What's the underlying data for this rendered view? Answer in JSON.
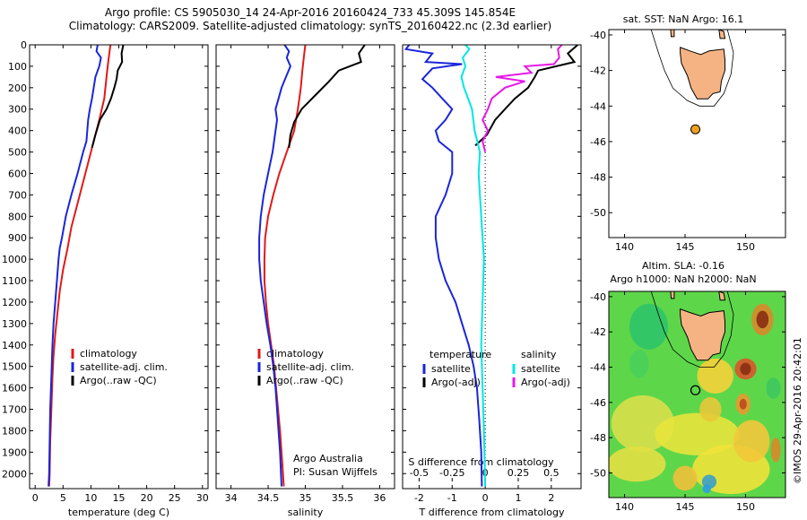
{
  "title_line1": "Argo profile: CS 5905030_14 24-Apr-2016 20160424_733 45.309S 145.854E",
  "title_line2": "Climatology: CARS2009. Satellite-adjusted climatology: synTS_20160422.nc (2.3d earlier)",
  "credit_vertical": "©IMOS 29-Apr-2016 20:42:01",
  "colors": {
    "red": "#e11919",
    "blue": "#1a26d9",
    "black": "#000000",
    "cyan": "#00e6e6",
    "magenta": "#e619e6",
    "land": "#f5b383",
    "float": "#f0a020"
  },
  "chart_data": [
    {
      "type": "line",
      "panel": "temperature",
      "xlabel": "temperature (deg C)",
      "ylabel": "",
      "xlim": [
        -1,
        31
      ],
      "ylim": [
        2070,
        0
      ],
      "xticks": [
        0,
        5,
        10,
        15,
        20,
        25,
        30
      ],
      "yticks": [
        0,
        100,
        200,
        300,
        400,
        500,
        600,
        700,
        800,
        900,
        1000,
        1100,
        1200,
        1300,
        1400,
        1500,
        1600,
        1700,
        1800,
        1900,
        2000
      ],
      "series": [
        {
          "name": "climatology",
          "color": "red",
          "points": [
            [
              13.5,
              0
            ],
            [
              13.3,
              40
            ],
            [
              13.0,
              100
            ],
            [
              12.8,
              150
            ],
            [
              12.4,
              250
            ],
            [
              11.5,
              350
            ],
            [
              10.5,
              450
            ],
            [
              9.5,
              550
            ],
            [
              8.5,
              650
            ],
            [
              7.5,
              750
            ],
            [
              6.5,
              850
            ],
            [
              5.8,
              950
            ],
            [
              5.0,
              1050
            ],
            [
              4.4,
              1150
            ],
            [
              4.0,
              1250
            ],
            [
              3.6,
              1350
            ],
            [
              3.3,
              1450
            ],
            [
              3.1,
              1550
            ],
            [
              2.9,
              1700
            ],
            [
              2.7,
              1850
            ],
            [
              2.6,
              2000
            ],
            [
              2.5,
              2060
            ]
          ]
        },
        {
          "name": "satellite-adj. clim.",
          "color": "blue",
          "points": [
            [
              11.2,
              0
            ],
            [
              11.0,
              30
            ],
            [
              11.8,
              60
            ],
            [
              11.5,
              100
            ],
            [
              10.8,
              150
            ],
            [
              10.5,
              200
            ],
            [
              10.2,
              250
            ],
            [
              9.8,
              300
            ],
            [
              9.5,
              350
            ],
            [
              9.2,
              450
            ],
            [
              8.6,
              500
            ],
            [
              7.6,
              600
            ],
            [
              6.5,
              700
            ],
            [
              5.5,
              800
            ],
            [
              4.8,
              900
            ],
            [
              4.4,
              950
            ],
            [
              4.2,
              1000
            ],
            [
              3.9,
              1100
            ],
            [
              3.6,
              1200
            ],
            [
              3.3,
              1300
            ],
            [
              3.1,
              1400
            ],
            [
              2.9,
              1550
            ],
            [
              2.7,
              1700
            ],
            [
              2.6,
              1850
            ],
            [
              2.5,
              2000
            ],
            [
              2.4,
              2060
            ]
          ]
        },
        {
          "name": "Argo(..raw -QC)",
          "color": "black",
          "points": [
            [
              15.8,
              0
            ],
            [
              15.5,
              40
            ],
            [
              15.6,
              80
            ],
            [
              14.8,
              120
            ],
            [
              14.6,
              160
            ],
            [
              14.2,
              200
            ],
            [
              13.6,
              250
            ],
            [
              12.8,
              300
            ],
            [
              11.6,
              350
            ],
            [
              10.8,
              420
            ],
            [
              10.2,
              480
            ]
          ]
        }
      ],
      "legend": [
        "climatology",
        "satellite-adj. clim.",
        "Argo(..raw -QC)"
      ]
    },
    {
      "type": "line",
      "panel": "salinity",
      "xlabel": "salinity",
      "xlim": [
        33.8,
        36.2
      ],
      "ylim": [
        2070,
        0
      ],
      "xticks": [
        34,
        34.5,
        35,
        35.5,
        36
      ],
      "xticklabels": [
        "34",
        "34.5",
        "35",
        "35.5",
        "36"
      ],
      "series": [
        {
          "name": "climatology",
          "color": "red",
          "points": [
            [
              35.0,
              0
            ],
            [
              34.98,
              60
            ],
            [
              34.96,
              120
            ],
            [
              34.94,
              200
            ],
            [
              34.9,
              300
            ],
            [
              34.85,
              400
            ],
            [
              34.75,
              500
            ],
            [
              34.65,
              600
            ],
            [
              34.57,
              700
            ],
            [
              34.5,
              800
            ],
            [
              34.46,
              900
            ],
            [
              34.45,
              1000
            ],
            [
              34.45,
              1100
            ],
            [
              34.47,
              1200
            ],
            [
              34.5,
              1300
            ],
            [
              34.54,
              1400
            ],
            [
              34.58,
              1500
            ],
            [
              34.62,
              1650
            ],
            [
              34.66,
              1800
            ],
            [
              34.69,
              1950
            ],
            [
              34.71,
              2060
            ]
          ]
        },
        {
          "name": "satellite-adj. clim.",
          "color": "blue",
          "points": [
            [
              34.72,
              0
            ],
            [
              34.78,
              30
            ],
            [
              34.75,
              60
            ],
            [
              34.8,
              100
            ],
            [
              34.74,
              150
            ],
            [
              34.68,
              200
            ],
            [
              34.64,
              250
            ],
            [
              34.6,
              300
            ],
            [
              34.62,
              350
            ],
            [
              34.6,
              400
            ],
            [
              34.56,
              500
            ],
            [
              34.5,
              600
            ],
            [
              34.44,
              700
            ],
            [
              34.4,
              800
            ],
            [
              34.38,
              900
            ],
            [
              34.38,
              1000
            ],
            [
              34.4,
              1100
            ],
            [
              34.44,
              1200
            ],
            [
              34.48,
              1300
            ],
            [
              34.53,
              1400
            ],
            [
              34.57,
              1500
            ],
            [
              34.6,
              1600
            ],
            [
              34.63,
              1750
            ],
            [
              34.66,
              1900
            ],
            [
              34.68,
              2060
            ]
          ]
        },
        {
          "name": "Argo(..raw -QC)",
          "color": "black",
          "points": [
            [
              35.8,
              0
            ],
            [
              35.72,
              40
            ],
            [
              35.75,
              80
            ],
            [
              35.45,
              120
            ],
            [
              35.32,
              170
            ],
            [
              35.15,
              230
            ],
            [
              34.95,
              300
            ],
            [
              34.85,
              360
            ],
            [
              34.8,
              420
            ],
            [
              34.78,
              480
            ]
          ]
        }
      ],
      "legend": [
        "climatology",
        "satellite-adj. clim.",
        "Argo(..raw -QC)"
      ],
      "annotation": [
        "Argo Australia",
        "PI: Susan Wijffels"
      ]
    },
    {
      "type": "line",
      "panel": "difference",
      "xlabel": "T difference from climatology",
      "top_axis_label": "S difference from climatology",
      "xlim": [
        -2.5,
        2.9
      ],
      "ylim": [
        2070,
        0
      ],
      "xticks": [
        -2,
        -1,
        0,
        1,
        2
      ],
      "top_ticks": [
        -0.5,
        -0.25,
        0,
        0.25,
        0.5
      ],
      "series": [
        {
          "name": "temperature satellite",
          "axis": "T",
          "color": "blue",
          "points": [
            [
              -2.3,
              0
            ],
            [
              -2.4,
              20
            ],
            [
              -1.6,
              40
            ],
            [
              -1.8,
              80
            ],
            [
              -0.7,
              90
            ],
            [
              -1.6,
              110
            ],
            [
              -1.9,
              160
            ],
            [
              -1.6,
              200
            ],
            [
              -1.3,
              250
            ],
            [
              -1.0,
              300
            ],
            [
              -1.2,
              350
            ],
            [
              -1.5,
              400
            ],
            [
              -1.4,
              450
            ],
            [
              -1.0,
              500
            ],
            [
              -1.0,
              600
            ],
            [
              -1.2,
              700
            ],
            [
              -1.5,
              800
            ],
            [
              -1.5,
              900
            ],
            [
              -1.4,
              1000
            ],
            [
              -1.2,
              1100
            ],
            [
              -0.9,
              1200
            ],
            [
              -0.7,
              1300
            ],
            [
              -0.5,
              1400
            ],
            [
              -0.35,
              1500
            ],
            [
              -0.25,
              1600
            ],
            [
              -0.18,
              1750
            ],
            [
              -0.12,
              1900
            ],
            [
              -0.1,
              2060
            ]
          ]
        },
        {
          "name": "temperature Argo(-adj)",
          "axis": "T",
          "color": "black",
          "points": [
            [
              2.8,
              0
            ],
            [
              2.5,
              40
            ],
            [
              2.7,
              80
            ],
            [
              1.6,
              120
            ],
            [
              1.5,
              150
            ],
            [
              1.3,
              200
            ],
            [
              0.9,
              250
            ],
            [
              0.6,
              300
            ],
            [
              0.3,
              350
            ],
            [
              0.05,
              420
            ],
            [
              -0.3,
              470
            ]
          ]
        },
        {
          "name": "salinity satellite",
          "axis": "S",
          "color": "cyan",
          "points": [
            [
              -0.15,
              0
            ],
            [
              -0.12,
              20
            ],
            [
              -0.17,
              60
            ],
            [
              -0.15,
              100
            ],
            [
              -0.18,
              150
            ],
            [
              -0.16,
              200
            ],
            [
              -0.13,
              250
            ],
            [
              -0.1,
              300
            ],
            [
              -0.08,
              400
            ],
            [
              -0.06,
              450
            ],
            [
              -0.04,
              500
            ],
            [
              -0.05,
              600
            ],
            [
              -0.04,
              700
            ],
            [
              -0.03,
              800
            ],
            [
              -0.02,
              900
            ],
            [
              -0.01,
              1000
            ],
            [
              -0.02,
              1200
            ],
            [
              -0.03,
              1400
            ],
            [
              -0.02,
              1600
            ],
            [
              -0.01,
              1800
            ],
            [
              0.0,
              2060
            ]
          ]
        },
        {
          "name": "salinity Argo(-adj)",
          "axis": "S",
          "color": "magenta",
          "points": [
            [
              0.58,
              0
            ],
            [
              0.55,
              20
            ],
            [
              0.56,
              60
            ],
            [
              0.52,
              90
            ],
            [
              0.3,
              100
            ],
            [
              0.35,
              130
            ],
            [
              0.08,
              150
            ],
            [
              0.3,
              170
            ],
            [
              0.15,
              200
            ],
            [
              0.05,
              250
            ],
            [
              0.02,
              300
            ],
            [
              -0.02,
              350
            ],
            [
              0.02,
              400
            ],
            [
              -0.02,
              450
            ],
            [
              0.0,
              500
            ]
          ]
        }
      ],
      "legend_titles": {
        "temperature": "temperature",
        "salinity": "salinity"
      },
      "legend": [
        "satellite",
        "Argo(-adj)",
        "satellite",
        "Argo(-adj)"
      ]
    }
  ],
  "ytick_labels": [
    "0",
    "100",
    "200",
    "300",
    "400",
    "500",
    "600",
    "700",
    "800",
    "900",
    "1000",
    "1100",
    "1200",
    "1300",
    "1400",
    "1500",
    "1600",
    "1700",
    "1800",
    "1900",
    "2000"
  ],
  "map_sst": {
    "title": "sat. SST: NaN Argo: 16.1",
    "lon_range": [
      138.7,
      153.3
    ],
    "lat_range": [
      -51.4,
      -39.7
    ],
    "xticks": [
      140,
      145,
      150
    ],
    "yticks": [
      -40,
      -42,
      -44,
      -46,
      -48,
      -50
    ],
    "float_position": {
      "lon": 145.854,
      "lat": -45.309
    }
  },
  "map_sla": {
    "title_line1": "Altim. SLA: -0.16",
    "title_line2": "Argo h1000: NaN h2000: NaN",
    "lon_range": [
      138.7,
      153.3
    ],
    "lat_range": [
      -51.4,
      -39.7
    ],
    "xticks": [
      140,
      145,
      150
    ],
    "yticks": [
      -40,
      -42,
      -44,
      -46,
      -48,
      -50
    ],
    "float_position": {
      "lon": 145.854,
      "lat": -45.309
    }
  }
}
